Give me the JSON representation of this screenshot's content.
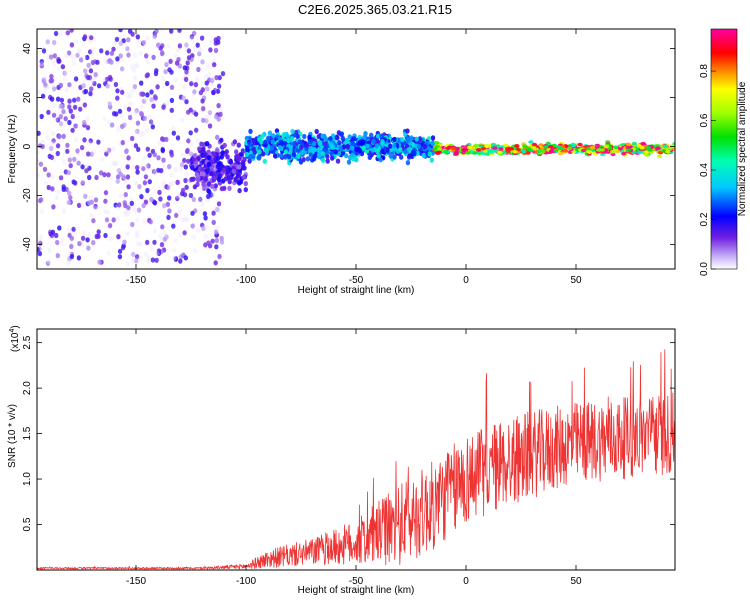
{
  "title": "C2E6.2025.365.03.21.R15",
  "colors": {
    "snr_line": "#ee3333",
    "axis": "#000000"
  },
  "chart_data": [
    {
      "type": "heatmap",
      "name": "spectrogram",
      "xlabel": "Height of straight line (km)",
      "ylabel": "Frequency (Hz)",
      "xlim": [
        -195,
        95
      ],
      "ylim": [
        -50,
        48
      ],
      "xticks": [
        -150,
        -100,
        -50,
        0,
        50
      ],
      "yticks": [
        -40,
        -20,
        0,
        20,
        40
      ],
      "colorbar": {
        "label": "Normalized spectral amplitude",
        "range": [
          0,
          0.97
        ],
        "ticks": [
          "0.0",
          "0.2",
          "0.4",
          "0.6",
          "0.8"
        ],
        "tick_values": [
          0.0,
          0.2,
          0.4,
          0.6,
          0.8
        ],
        "colormap": "rainbow (violet → blue → cyan → green → yellow → red → magenta)"
      },
      "description_regions": [
        {
          "x_range": [
            -195,
            -110
          ],
          "freq_spread": 48,
          "amplitude": 0.05,
          "note": "broad noise across all frequencies"
        },
        {
          "x_range": [
            -125,
            -100
          ],
          "freq_center": -8,
          "freq_spread": 8,
          "amplitude": 0.15
        },
        {
          "x_range": [
            -100,
            -15
          ],
          "freq_center": 0,
          "freq_spread": 5,
          "amplitude": 0.3
        },
        {
          "x_range": [
            -15,
            95
          ],
          "freq_center": -1,
          "freq_spread": 2,
          "amplitude": 0.75
        }
      ]
    },
    {
      "type": "line",
      "name": "snr",
      "xlabel": "Height of straight line (km)",
      "ylabel": "SNR (10 * v/v)",
      "yscale_label": "(x10",
      "yscale_exponent": "4",
      "xlim": [
        -195,
        95
      ],
      "ylim": [
        0,
        2.65
      ],
      "xticks": [
        -150,
        -100,
        -50,
        0,
        50
      ],
      "yticks": [
        0.5,
        1.0,
        1.5,
        2.0,
        2.5
      ],
      "ytick_labels": [
        "0.5",
        "1.0",
        "1.5",
        "2.0",
        "2.5"
      ],
      "envelope": [
        {
          "x": -195,
          "mean": 0.02,
          "amp": 0.01
        },
        {
          "x": -120,
          "mean": 0.02,
          "amp": 0.01
        },
        {
          "x": -100,
          "mean": 0.04,
          "amp": 0.03
        },
        {
          "x": -90,
          "mean": 0.12,
          "amp": 0.1
        },
        {
          "x": -70,
          "mean": 0.2,
          "amp": 0.15
        },
        {
          "x": -50,
          "mean": 0.3,
          "amp": 0.25
        },
        {
          "x": -30,
          "mean": 0.5,
          "amp": 0.45
        },
        {
          "x": -15,
          "mean": 0.7,
          "amp": 0.5
        },
        {
          "x": 0,
          "mean": 1.0,
          "amp": 0.5
        },
        {
          "x": 20,
          "mean": 1.2,
          "amp": 0.5
        },
        {
          "x": 50,
          "mean": 1.4,
          "amp": 0.45
        },
        {
          "x": 95,
          "mean": 1.5,
          "amp": 0.45
        }
      ]
    }
  ]
}
